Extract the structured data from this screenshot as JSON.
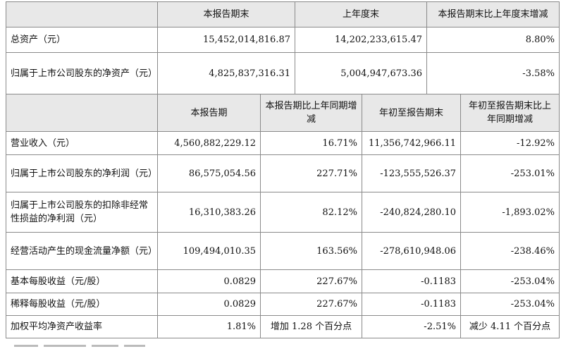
{
  "top": {
    "headers": [
      "",
      "本报告期末",
      "上年度末",
      "本报告期末比上年度末增减"
    ],
    "rows": [
      [
        "总资产（元）",
        "15,452,014,816.87",
        "14,202,233,615.47",
        "8.80%"
      ],
      [
        "归属于上市公司股东的净资产（元）",
        "4,825,837,316.31",
        "5,004,947,673.36",
        "-3.58%"
      ]
    ]
  },
  "bottom": {
    "headers": [
      "",
      "本报告期",
      "本报告期比上年同期增减",
      "年初至报告期末",
      "年初至报告期末比上年同期增减"
    ],
    "rows": [
      [
        "营业收入（元）",
        "4,560,882,229.12",
        "16.71%",
        "11,356,742,966.11",
        "-12.92%"
      ],
      [
        "归属于上市公司股东的净利润（元）",
        "86,575,054.56",
        "227.71%",
        "-123,555,526.37",
        "-253.01%"
      ],
      [
        "归属于上市公司股东的扣除非经常性损益的净利润（元）",
        "16,310,383.26",
        "82.12%",
        "-240,824,280.10",
        "-1,893.02%"
      ],
      [
        "经营活动产生的现金流量净额（元）",
        "109,494,010.35",
        "163.56%",
        "-278,610,948.06",
        "-238.46%"
      ],
      [
        "基本每股收益（元/股）",
        "0.0829",
        "227.67%",
        "-0.1183",
        "-253.04%"
      ],
      [
        "稀释每股收益（元/股）",
        "0.0829",
        "227.67%",
        "-0.1183",
        "-253.04%"
      ],
      [
        "加权平均净资产收益率",
        "1.81%",
        "增加 1.28 个百分点",
        "-2.51%",
        "减少 4.11 个百分点"
      ]
    ]
  }
}
